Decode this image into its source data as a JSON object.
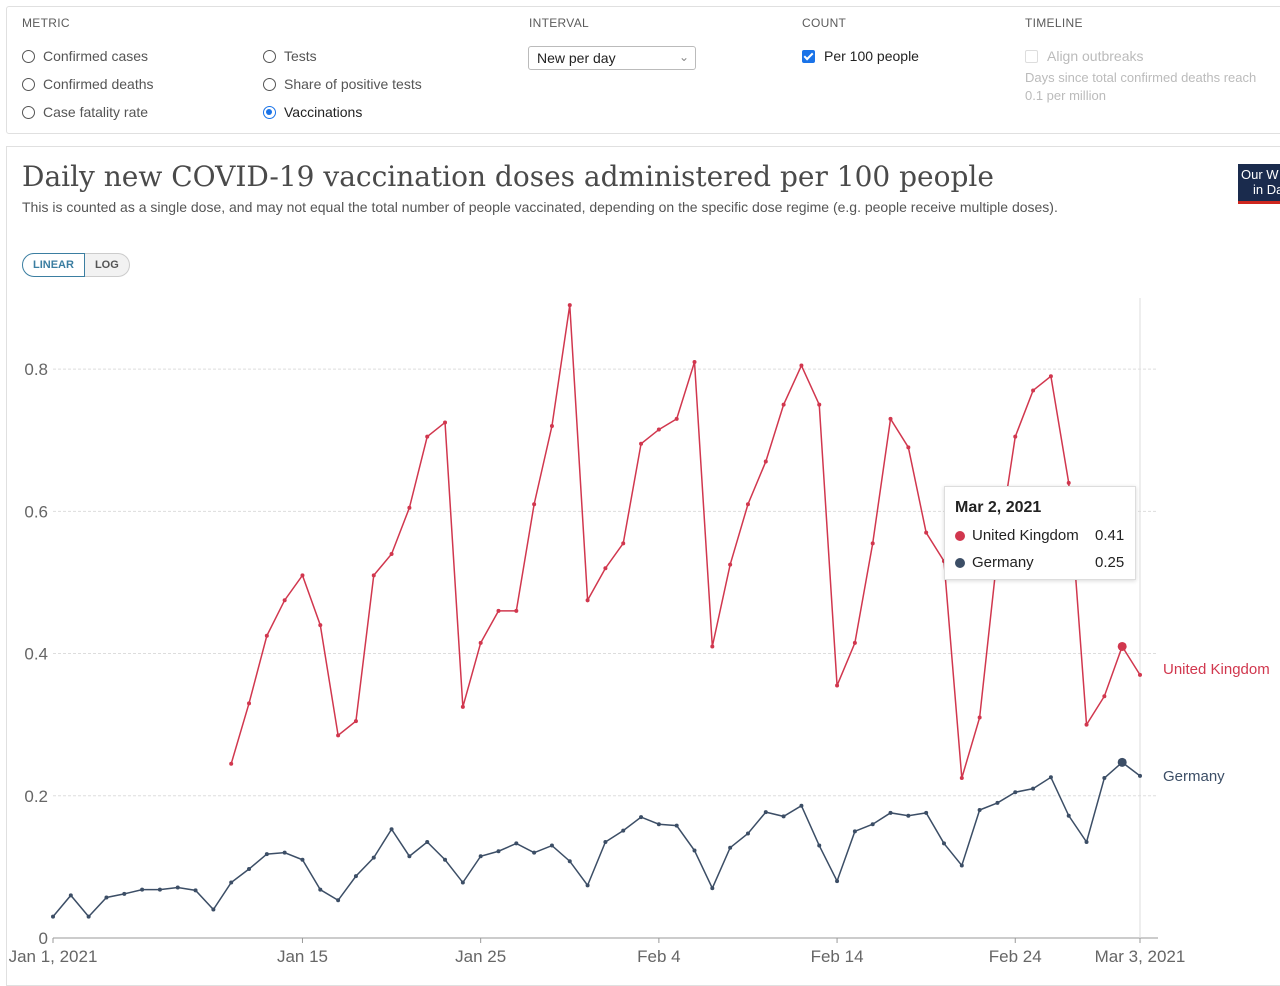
{
  "controls": {
    "metric": {
      "title": "METRIC",
      "options": [
        "Confirmed cases",
        "Confirmed deaths",
        "Case fatality rate",
        "Tests",
        "Share of positive tests",
        "Vaccinations"
      ],
      "selected": "Vaccinations"
    },
    "interval": {
      "title": "INTERVAL",
      "value": "New per day"
    },
    "count": {
      "title": "COUNT",
      "option": "Per 100 people",
      "checked": true
    },
    "timeline": {
      "title": "TIMELINE",
      "option": "Align outbreaks",
      "checked": false,
      "note_line1": "Days since total confirmed deaths reach",
      "note_line2": "0.1 per million"
    }
  },
  "scale_toggle": {
    "linear": "LINEAR",
    "log": "LOG",
    "active": "LINEAR"
  },
  "logo_text_1": "Our W",
  "logo_text_2": "in Da",
  "tooltip": {
    "date": "Mar 2, 2021",
    "rows": [
      {
        "name": "United Kingdom",
        "value": "0.41",
        "color": "#d1374e"
      },
      {
        "name": "Germany",
        "value": "0.25",
        "color": "#3c4e66"
      }
    ]
  },
  "chart_data": {
    "type": "line",
    "title": "Daily new COVID-19 vaccination doses administered per 100 people",
    "subtitle": "This is counted as a single dose, and may not equal the total number of people vaccinated, depending on the specific dose regime (e.g. people receive multiple doses).",
    "x_start": "2021-01-01",
    "x_end": "2021-03-03",
    "x_tick_labels": [
      "Jan 1, 2021",
      "Jan 15",
      "Jan 25",
      "Feb 4",
      "Feb 14",
      "Feb 24",
      "Mar 3, 2021"
    ],
    "x_tick_dates": [
      "2021-01-01",
      "2021-01-15",
      "2021-01-25",
      "2021-02-04",
      "2021-02-14",
      "2021-02-24",
      "2021-03-03"
    ],
    "y_ticks": [
      0,
      0.2,
      0.4,
      0.6,
      0.8
    ],
    "ylim": [
      0,
      0.9
    ],
    "grid": "horizontal dashed",
    "series": [
      {
        "name": "United Kingdom",
        "color": "#d1374e",
        "x": [
          "2021-01-11",
          "2021-01-12",
          "2021-01-13",
          "2021-01-14",
          "2021-01-15",
          "2021-01-16",
          "2021-01-17",
          "2021-01-18",
          "2021-01-19",
          "2021-01-20",
          "2021-01-21",
          "2021-01-22",
          "2021-01-23",
          "2021-01-24",
          "2021-01-25",
          "2021-01-26",
          "2021-01-27",
          "2021-01-28",
          "2021-01-29",
          "2021-01-30",
          "2021-01-31",
          "2021-02-01",
          "2021-02-02",
          "2021-02-03",
          "2021-02-04",
          "2021-02-05",
          "2021-02-06",
          "2021-02-07",
          "2021-02-08",
          "2021-02-09",
          "2021-02-10",
          "2021-02-11",
          "2021-02-12",
          "2021-02-13",
          "2021-02-14",
          "2021-02-15",
          "2021-02-16",
          "2021-02-17",
          "2021-02-18",
          "2021-02-19",
          "2021-02-20",
          "2021-02-21",
          "2021-02-22",
          "2021-02-23",
          "2021-02-24",
          "2021-02-25",
          "2021-02-26",
          "2021-02-27",
          "2021-02-28",
          "2021-03-01",
          "2021-03-02",
          "2021-03-03"
        ],
        "values": [
          0.245,
          0.33,
          0.425,
          0.475,
          0.51,
          0.44,
          0.285,
          0.305,
          0.51,
          0.54,
          0.605,
          0.705,
          0.725,
          0.325,
          0.415,
          0.46,
          0.46,
          0.61,
          0.72,
          0.89,
          0.475,
          0.52,
          0.555,
          0.695,
          0.715,
          0.73,
          0.81,
          0.41,
          0.525,
          0.61,
          0.67,
          0.75,
          0.805,
          0.75,
          0.355,
          0.415,
          0.555,
          0.73,
          0.69,
          0.57,
          0.53,
          0.225,
          0.31,
          0.54,
          0.705,
          0.77,
          0.79,
          0.64,
          0.3,
          0.34,
          0.41,
          0.37
        ]
      },
      {
        "name": "Germany",
        "color": "#3c4e66",
        "x": [
          "2021-01-01",
          "2021-01-02",
          "2021-01-03",
          "2021-01-04",
          "2021-01-05",
          "2021-01-06",
          "2021-01-07",
          "2021-01-08",
          "2021-01-09",
          "2021-01-10",
          "2021-01-11",
          "2021-01-12",
          "2021-01-13",
          "2021-01-14",
          "2021-01-15",
          "2021-01-16",
          "2021-01-17",
          "2021-01-18",
          "2021-01-19",
          "2021-01-20",
          "2021-01-21",
          "2021-01-22",
          "2021-01-23",
          "2021-01-24",
          "2021-01-25",
          "2021-01-26",
          "2021-01-27",
          "2021-01-28",
          "2021-01-29",
          "2021-01-30",
          "2021-01-31",
          "2021-02-01",
          "2021-02-02",
          "2021-02-03",
          "2021-02-04",
          "2021-02-05",
          "2021-02-06",
          "2021-02-07",
          "2021-02-08",
          "2021-02-09",
          "2021-02-10",
          "2021-02-11",
          "2021-02-12",
          "2021-02-13",
          "2021-02-14",
          "2021-02-15",
          "2021-02-16",
          "2021-02-17",
          "2021-02-18",
          "2021-02-19",
          "2021-02-20",
          "2021-02-21",
          "2021-02-22",
          "2021-02-23",
          "2021-02-24",
          "2021-02-25",
          "2021-02-26",
          "2021-02-27",
          "2021-02-28",
          "2021-03-01",
          "2021-03-02",
          "2021-03-03"
        ],
        "values": [
          0.03,
          0.06,
          0.03,
          0.057,
          0.062,
          0.068,
          0.068,
          0.071,
          0.067,
          0.04,
          0.078,
          0.097,
          0.118,
          0.12,
          0.11,
          0.068,
          0.053,
          0.087,
          0.113,
          0.153,
          0.115,
          0.135,
          0.11,
          0.078,
          0.115,
          0.122,
          0.133,
          0.12,
          0.13,
          0.108,
          0.074,
          0.135,
          0.151,
          0.17,
          0.16,
          0.158,
          0.123,
          0.07,
          0.127,
          0.147,
          0.177,
          0.171,
          0.186,
          0.13,
          0.08,
          0.15,
          0.16,
          0.176,
          0.172,
          0.176,
          0.133,
          0.102,
          0.18,
          0.19,
          0.205,
          0.21,
          0.226,
          0.172,
          0.135,
          0.225,
          0.247,
          0.228
        ]
      }
    ],
    "end_labels": [
      "United Kingdom",
      "Germany"
    ]
  }
}
